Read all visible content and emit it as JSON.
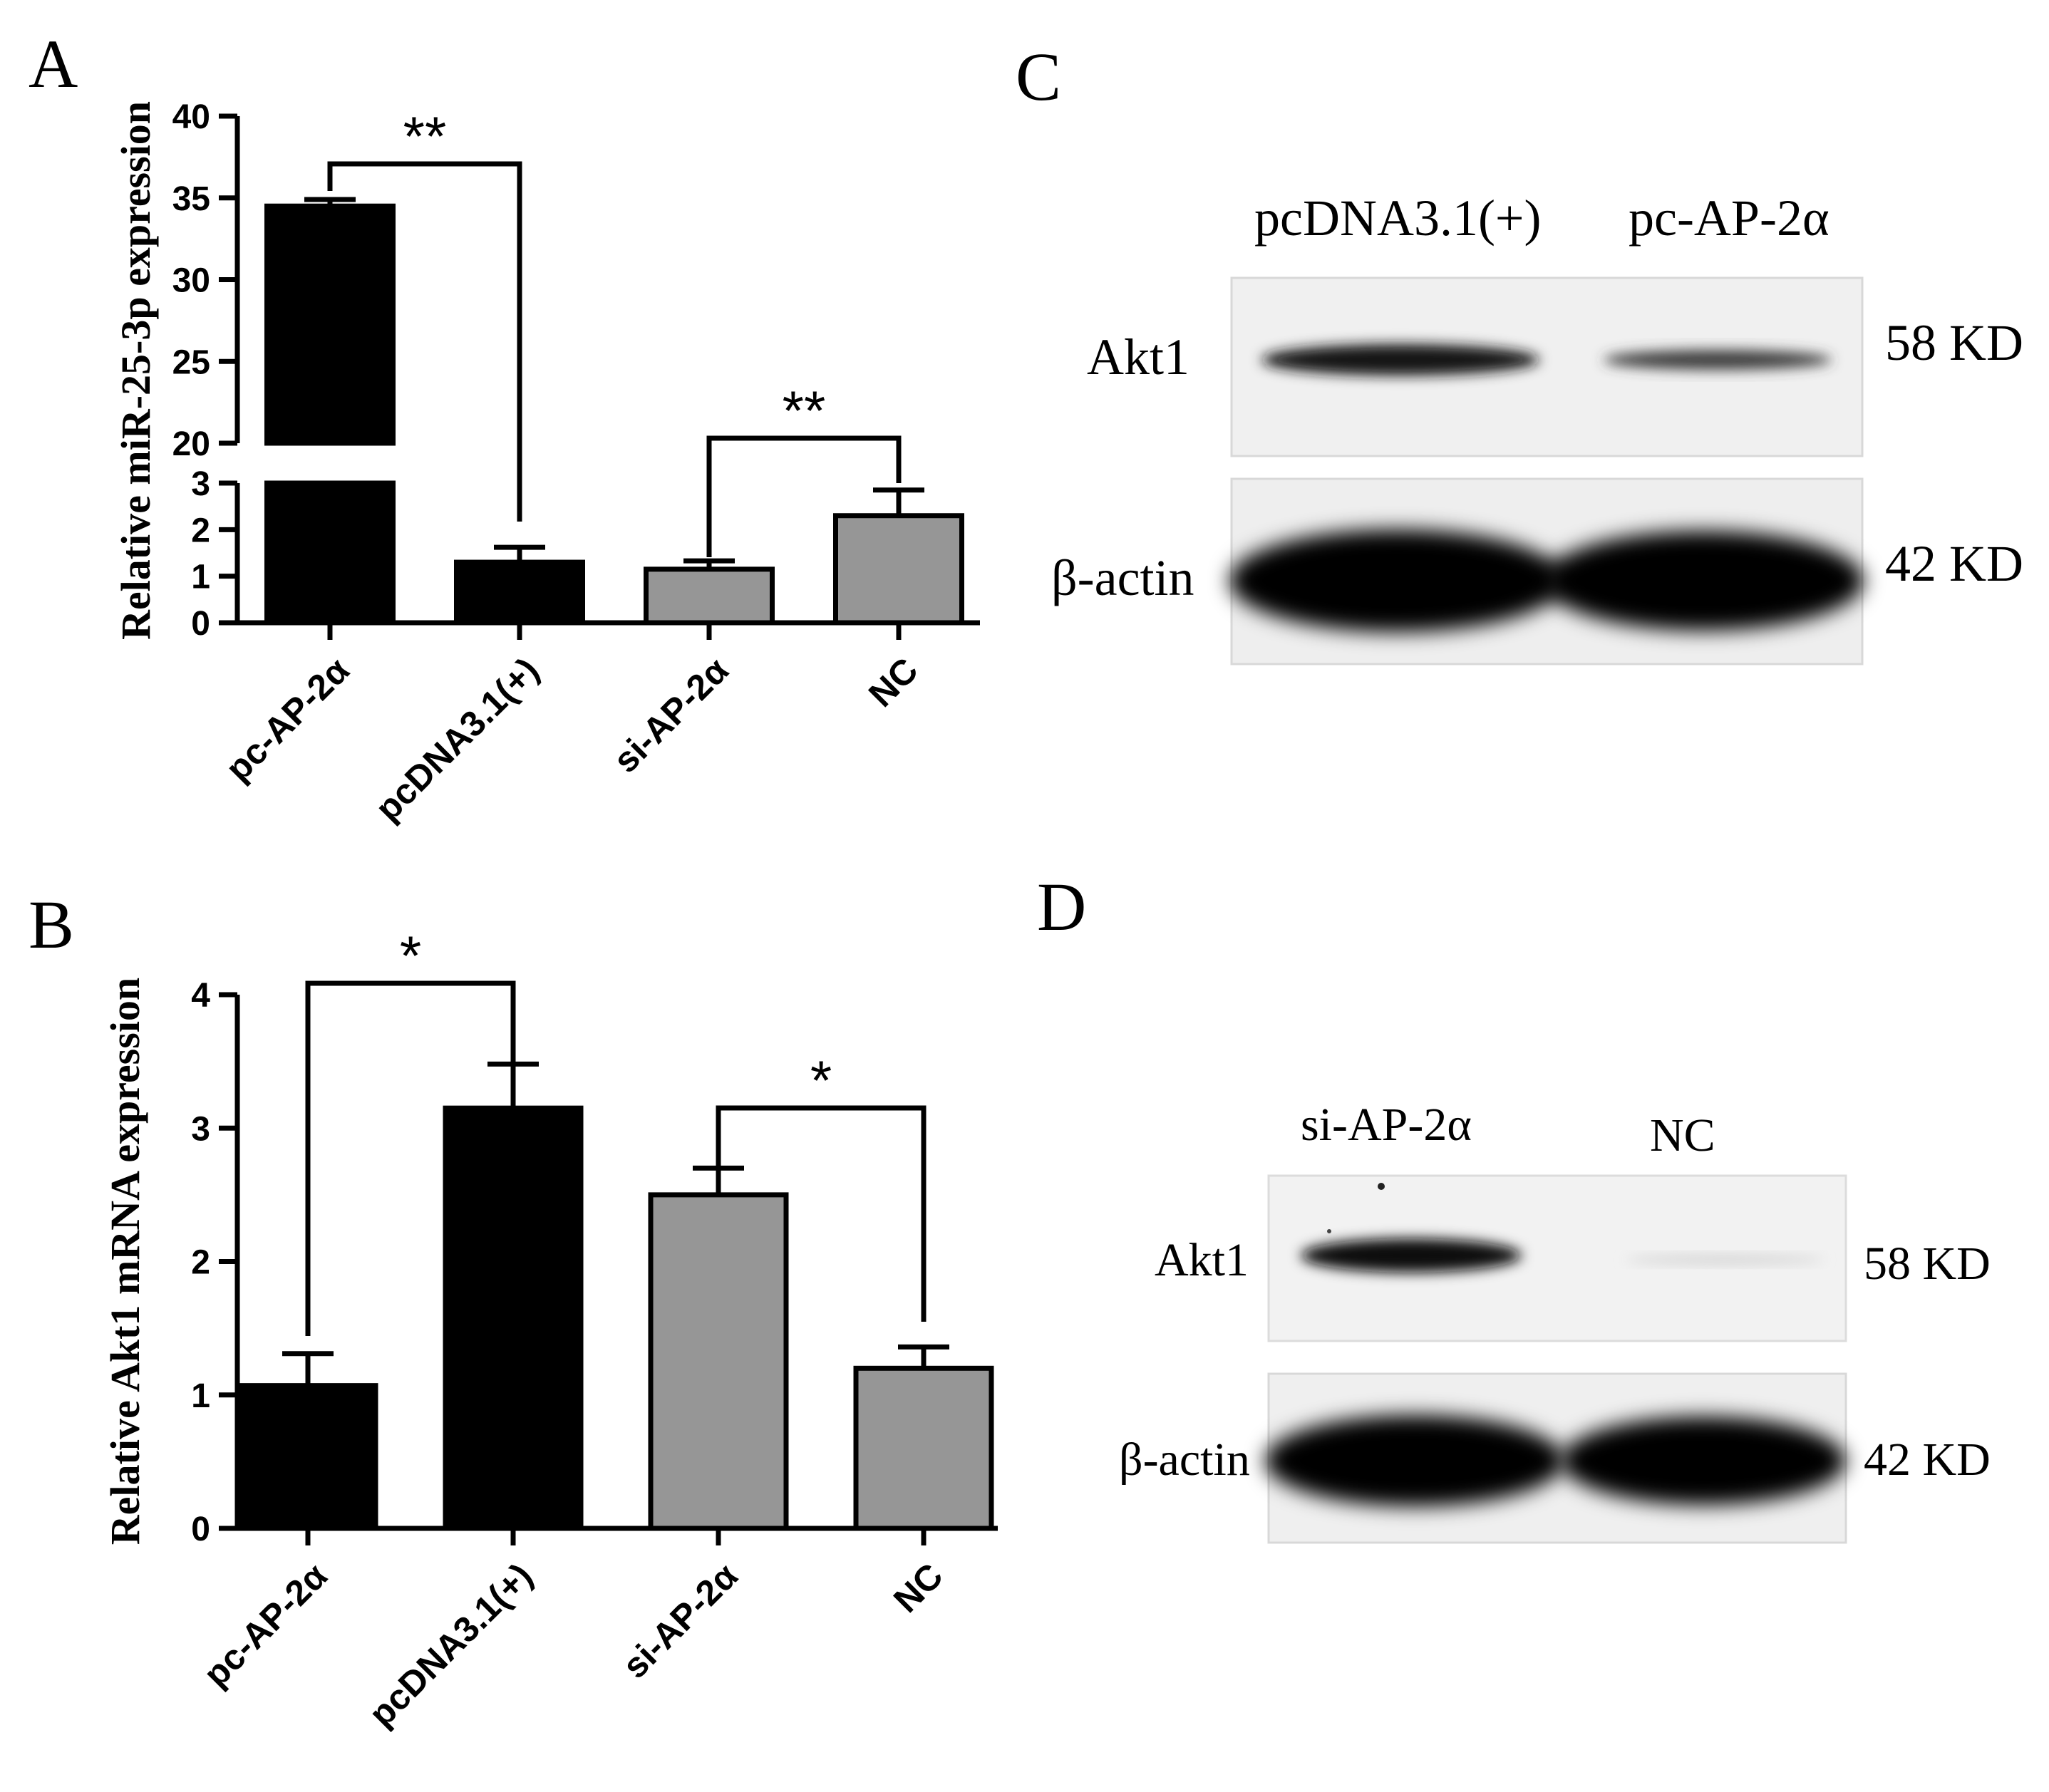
{
  "panels": {
    "A": {
      "letter": "A",
      "chart_data": {
        "type": "bar",
        "title": "",
        "xlabel": "",
        "ylabel": "Relative miR-25-3p expression",
        "categories": [
          "pc-AP-2α",
          "pcDNA3.1(+)",
          "si-AP-2α",
          "NC"
        ],
        "values": [
          34.5,
          1.3,
          1.15,
          2.3
        ],
        "errors": [
          0.4,
          0.32,
          0.18,
          0.55
        ],
        "colors": [
          "#000000",
          "#000000",
          "#969696",
          "#969696"
        ],
        "broken_axis": true,
        "ylim_lower": [
          0,
          3
        ],
        "ylim_upper": [
          20,
          40
        ],
        "yticks_lower": [
          "0",
          "1",
          "2",
          "3"
        ],
        "yticks_upper": [
          "20",
          "25",
          "30",
          "35",
          "40"
        ],
        "significance": [
          {
            "from": 0,
            "to": 1,
            "label": "**"
          },
          {
            "from": 2,
            "to": 3,
            "label": "**"
          }
        ]
      }
    },
    "B": {
      "letter": "B",
      "chart_data": {
        "type": "bar",
        "title": "",
        "xlabel": "",
        "ylabel": "Relative Akt1 mRNA expression",
        "categories": [
          "pc-AP-2α",
          "pcDNA3.1(+)",
          "si-AP-2α",
          "NC"
        ],
        "values": [
          1.07,
          3.15,
          2.5,
          1.2
        ],
        "errors": [
          0.24,
          0.33,
          0.2,
          0.16
        ],
        "colors": [
          "#000000",
          "#000000",
          "#969696",
          "#969696"
        ],
        "ylim": [
          0,
          4
        ],
        "yticks": [
          "0",
          "1",
          "2",
          "3",
          "4"
        ],
        "significance": [
          {
            "from": 0,
            "to": 1,
            "label": "*"
          },
          {
            "from": 2,
            "to": 3,
            "label": "*"
          }
        ]
      }
    },
    "C": {
      "letter": "C",
      "lanes": [
        "pcDNA3.1(+)",
        "pc-AP-2α"
      ],
      "rows": [
        {
          "label": "Akt1",
          "size": "58 KD"
        },
        {
          "label": "β-actin",
          "size": "42 KD"
        }
      ]
    },
    "D": {
      "letter": "D",
      "lanes": [
        "si-AP-2α",
        "NC"
      ],
      "rows": [
        {
          "label": "Akt1",
          "size": "58 KD"
        },
        {
          "label": "β-actin",
          "size": "42 KD"
        }
      ]
    }
  }
}
